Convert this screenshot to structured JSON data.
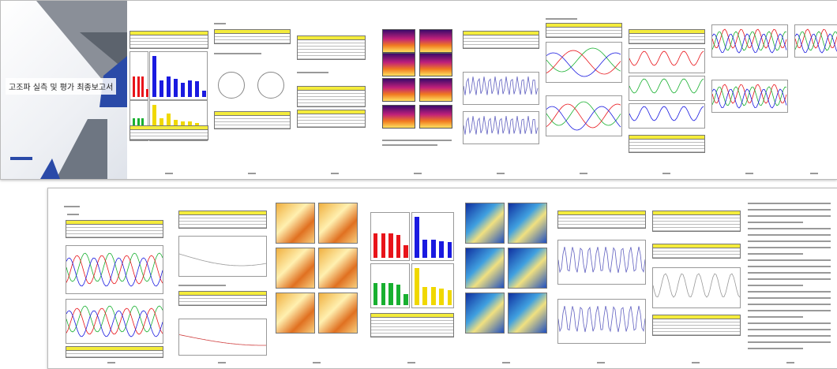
{
  "cover": {
    "title": "고조파 실측 및 평가 최종보고서"
  },
  "colors": {
    "table_header": "#f4ec3c",
    "cover_accent": "#2a4aa8",
    "red": "#e8141a",
    "blue": "#1a1ae0",
    "green": "#18b030",
    "yellow": "#f0d800"
  }
}
